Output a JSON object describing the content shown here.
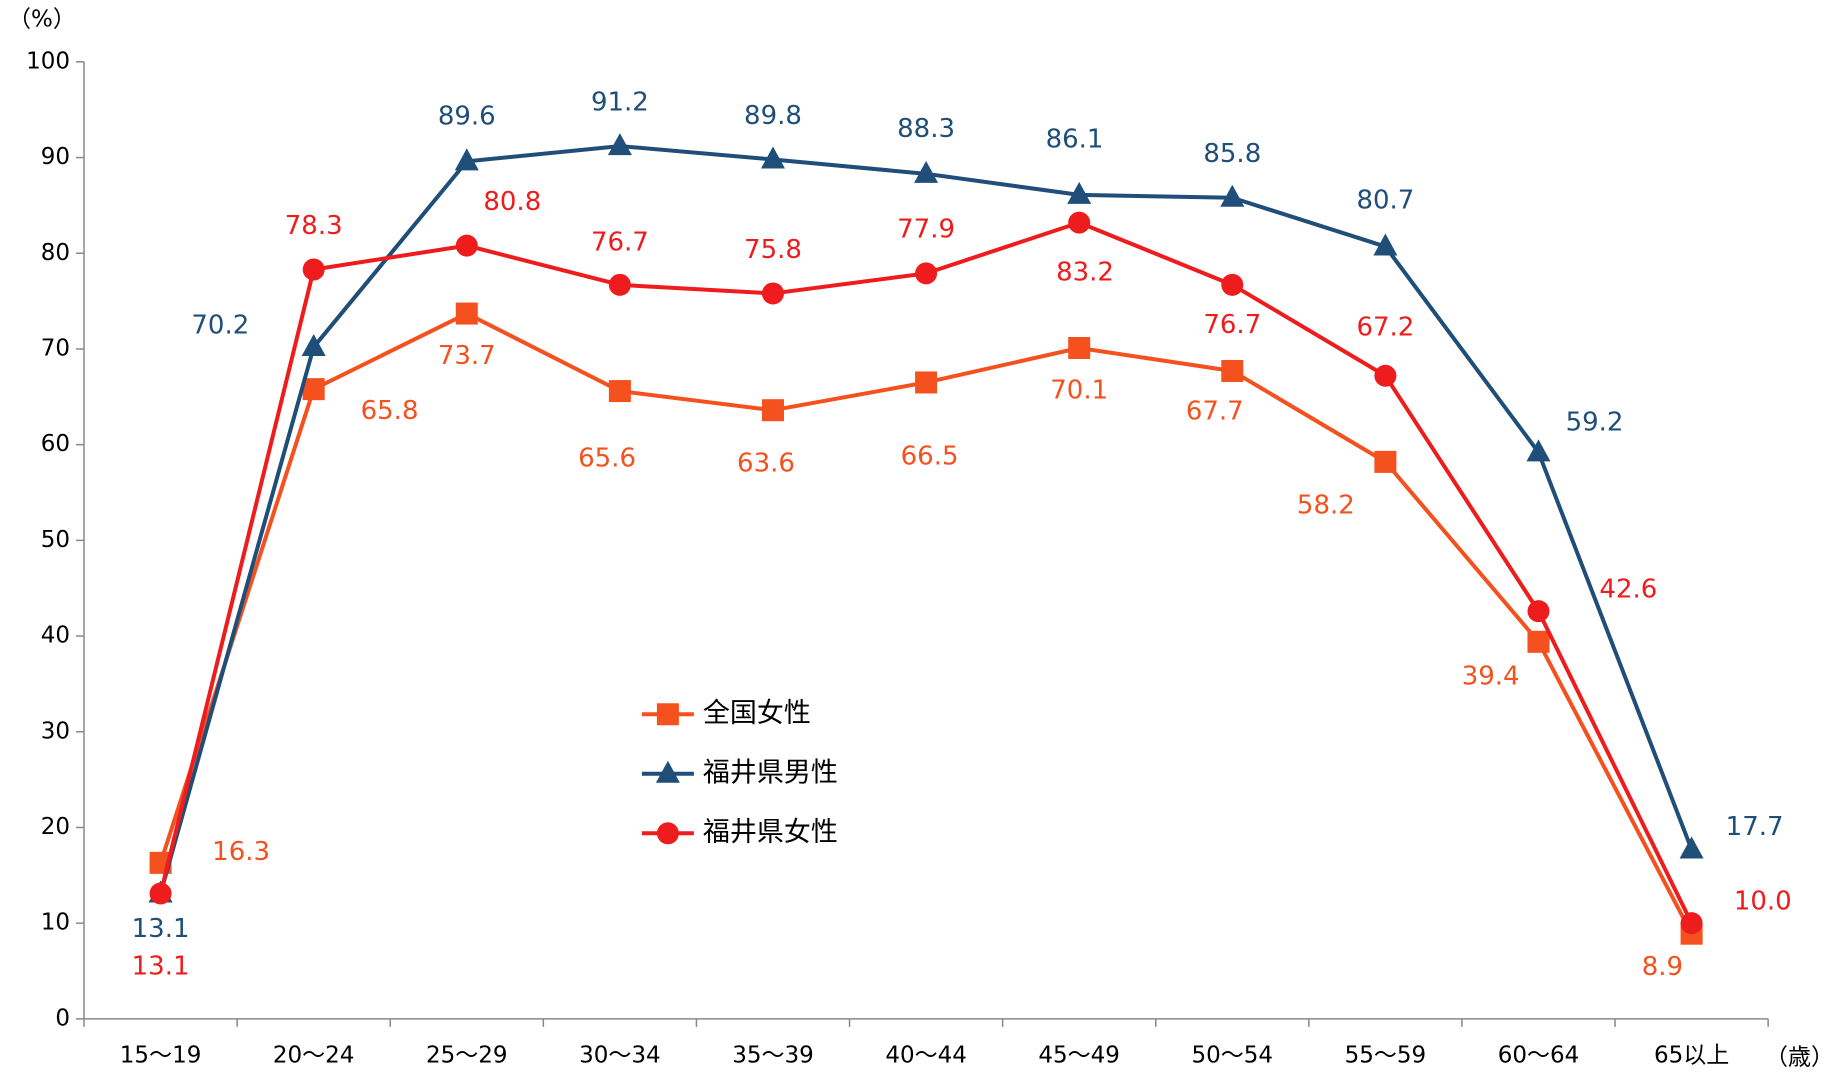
{
  "chart_data": {
    "type": "line",
    "y_label": "（%）",
    "x_label": "（歳）",
    "categories": [
      "15〜19",
      "20〜24",
      "25〜29",
      "30〜34",
      "35〜39",
      "40〜44",
      "45〜49",
      "50〜54",
      "55〜59",
      "60〜64",
      "65以上"
    ],
    "ylim": [
      0,
      100
    ],
    "yticks": [
      0,
      10,
      20,
      30,
      40,
      50,
      60,
      70,
      80,
      90,
      100
    ],
    "legend": "center",
    "series": [
      {
        "name": "全国女性",
        "color": "#f4511e",
        "marker": "square",
        "values": [
          16.3,
          65.8,
          73.7,
          65.6,
          63.6,
          66.5,
          70.1,
          67.7,
          58.2,
          39.4,
          8.9
        ],
        "value_labels": [
          "16.3",
          "65.8",
          "73.7",
          "65.6",
          "63.6",
          "66.5",
          "70.1",
          "67.7",
          "58.2",
          "39.4",
          "8.9"
        ]
      },
      {
        "name": "福井県男性",
        "color": "#1f4e79",
        "marker": "triangle",
        "values": [
          13.1,
          70.2,
          89.6,
          91.2,
          89.8,
          88.3,
          86.1,
          85.8,
          80.7,
          59.2,
          17.7
        ],
        "value_labels": [
          "13.1",
          "70.2",
          "89.6",
          "91.2",
          "89.8",
          "88.3",
          "86.1",
          "85.8",
          "80.7",
          "59.2",
          "17.7"
        ]
      },
      {
        "name": "福井県女性",
        "color": "#ee1c1c",
        "marker": "circle",
        "values": [
          13.1,
          78.3,
          80.8,
          76.7,
          75.8,
          77.9,
          83.2,
          76.7,
          67.2,
          42.6,
          10.0
        ],
        "value_labels": [
          "13.1",
          "78.3",
          "80.8",
          "76.7",
          "75.8",
          "77.9",
          "83.2",
          "76.7",
          "67.2",
          "42.6",
          "10.0"
        ]
      }
    ]
  }
}
